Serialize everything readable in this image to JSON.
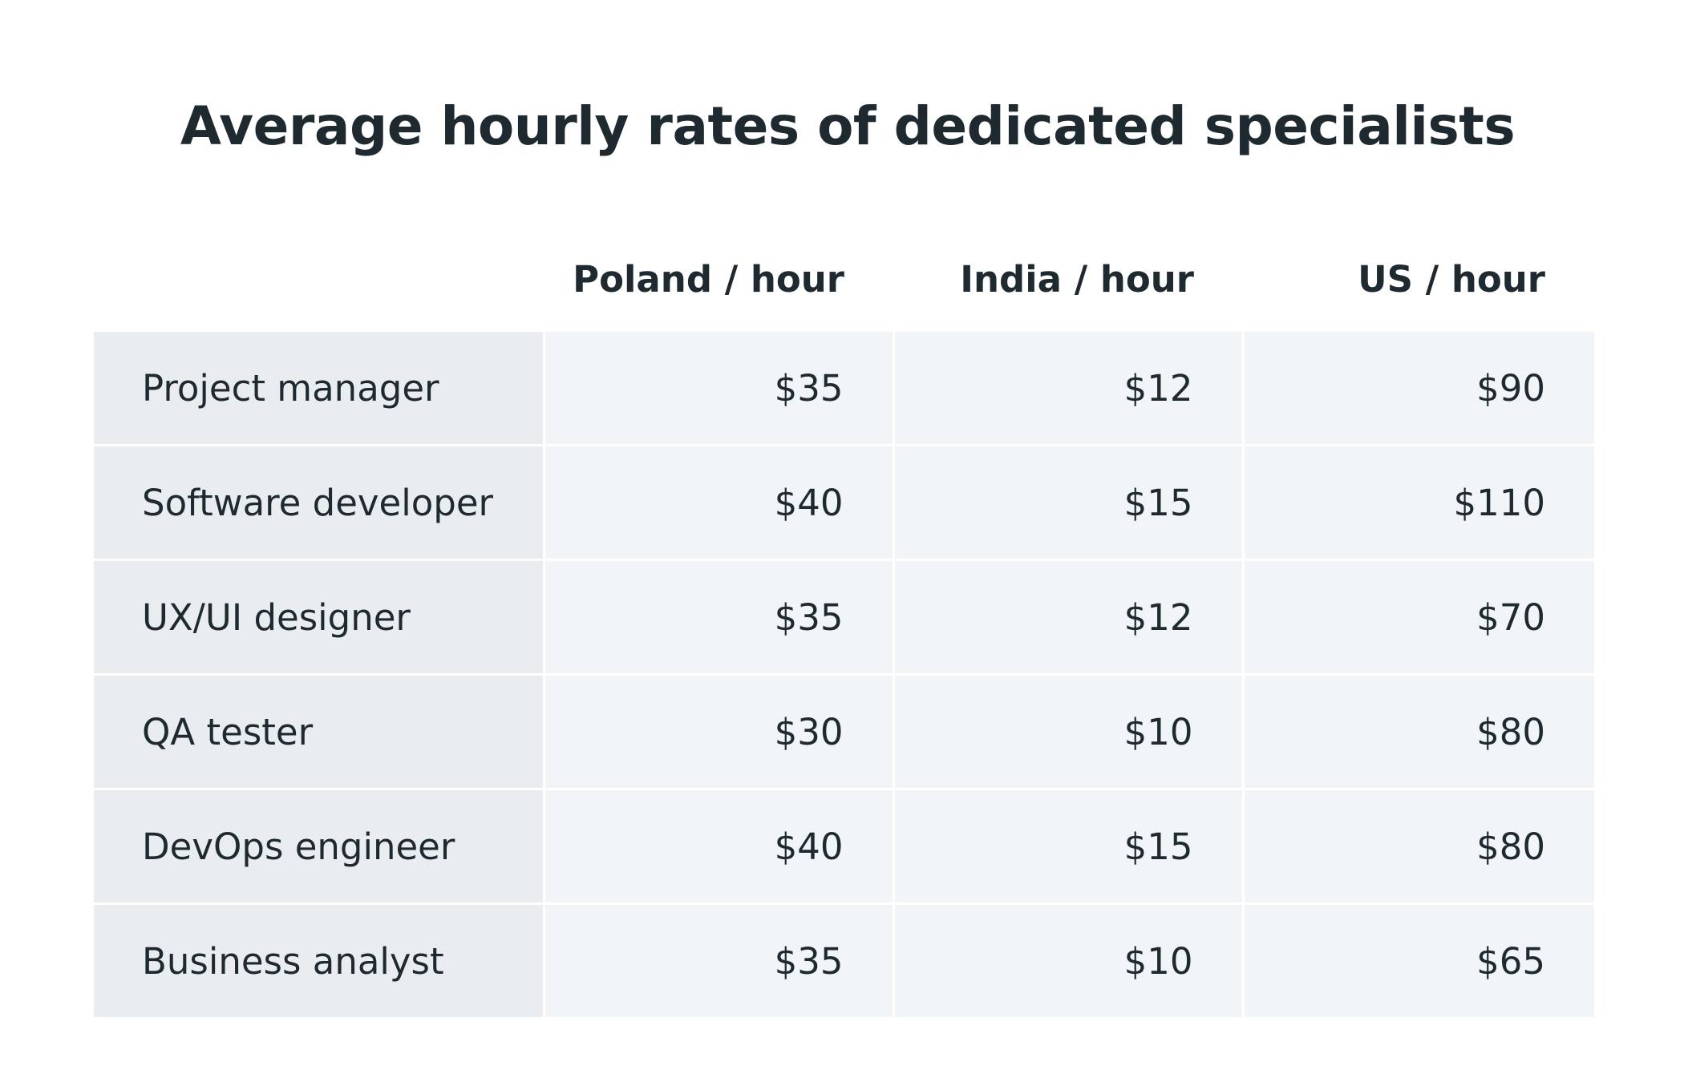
{
  "chart_data": {
    "type": "table",
    "title": "Average hourly rates of dedicated specialists",
    "columns": [
      "",
      "Poland / hour",
      "India / hour",
      "US / hour"
    ],
    "rows": [
      {
        "role": "Project manager",
        "poland": "$35",
        "india": "$12",
        "us": "$90"
      },
      {
        "role": "Software developer",
        "poland": "$40",
        "india": "$15",
        "us": "$110"
      },
      {
        "role": "UX/UI designer",
        "poland": "$35",
        "india": "$12",
        "us": "$70"
      },
      {
        "role": "QA tester",
        "poland": "$30",
        "india": "$10",
        "us": "$80"
      },
      {
        "role": "DevOps engineer",
        "poland": "$40",
        "india": "$15",
        "us": "$80"
      },
      {
        "role": "Business analyst",
        "poland": "$35",
        "india": "$10",
        "us": "$65"
      }
    ]
  },
  "colors": {
    "text": "#1f2a30",
    "role_cell_bg": "#e9edf0",
    "value_cell_bg": "#f1f5f8",
    "grid_line": "#ffffff"
  }
}
